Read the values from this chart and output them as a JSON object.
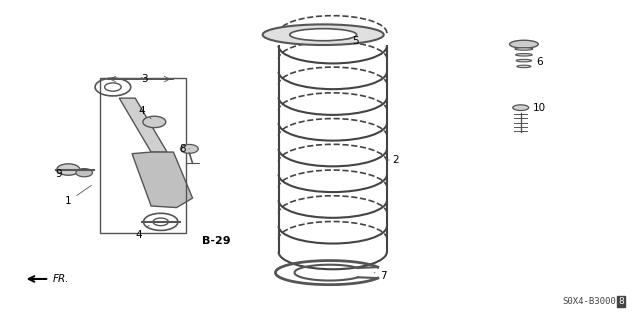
{
  "title": "",
  "bg_color": "#ffffff",
  "fig_width": 6.4,
  "fig_height": 3.2,
  "dpi": 100,
  "catalog_num": "S0X4-B3000",
  "line_color": "#555555",
  "text_color": "#000000",
  "spring_color": "#444444",
  "shock_color": "#666666"
}
